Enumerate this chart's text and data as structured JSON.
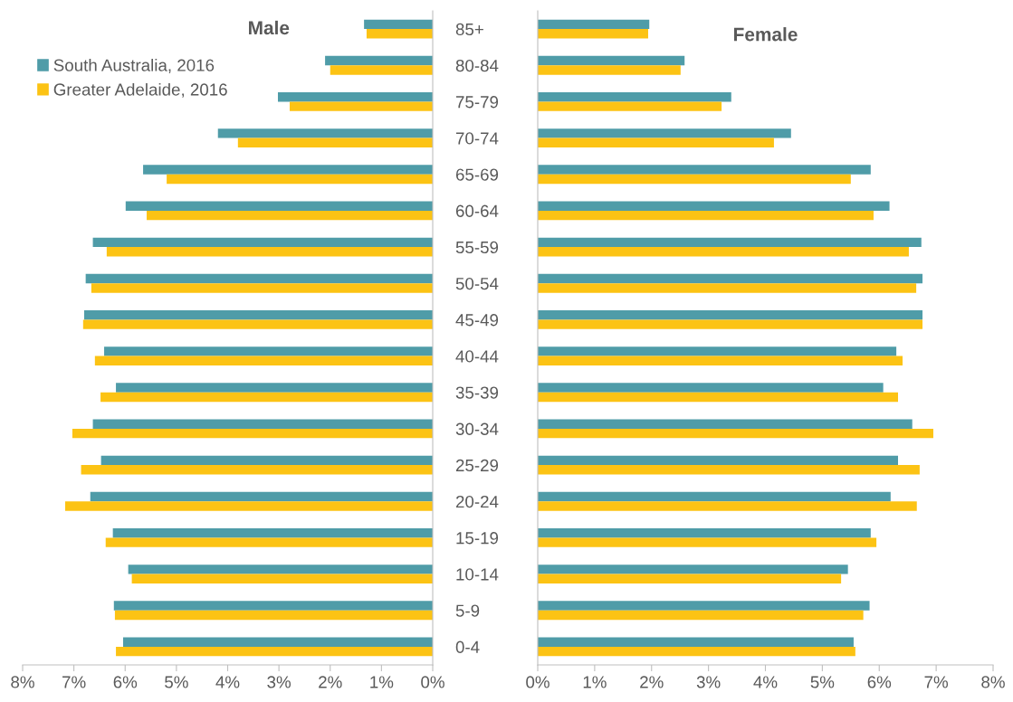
{
  "chart_data": [
    {
      "type": "bar",
      "orientation": "horizontal",
      "title": "Male",
      "categories": [
        "85+",
        "80-84",
        "75-79",
        "70-74",
        "65-69",
        "60-64",
        "55-59",
        "50-54",
        "45-49",
        "40-44",
        "35-39",
        "30-34",
        "25-29",
        "20-24",
        "15-19",
        "10-14",
        "5-9",
        "0-4"
      ],
      "series": [
        {
          "name": "South Australia, 2016",
          "color": "#4f9ca8",
          "values": [
            1.34,
            2.1,
            3.02,
            4.19,
            5.65,
            5.99,
            6.63,
            6.77,
            6.8,
            6.41,
            6.18,
            6.63,
            6.47,
            6.68,
            6.24,
            5.94,
            6.22,
            6.04
          ]
        },
        {
          "name": "Greater Adelaide, 2016",
          "color": "#fcc314",
          "values": [
            1.29,
            2.0,
            2.79,
            3.8,
            5.19,
            5.58,
            6.36,
            6.66,
            6.82,
            6.59,
            6.48,
            7.03,
            6.86,
            7.17,
            6.38,
            5.87,
            6.2,
            6.18
          ]
        }
      ],
      "xlim": [
        8,
        0
      ],
      "xticks": [
        {
          "value": 8,
          "label": "8%"
        },
        {
          "value": 7,
          "label": "7%"
        },
        {
          "value": 6,
          "label": "6%"
        },
        {
          "value": 5,
          "label": "5%"
        },
        {
          "value": 4,
          "label": "4%"
        },
        {
          "value": 3,
          "label": "3%"
        },
        {
          "value": 2,
          "label": "2%"
        },
        {
          "value": 1,
          "label": "1%"
        },
        {
          "value": 0,
          "label": "0%"
        }
      ],
      "legend": "top left",
      "grid": false
    },
    {
      "type": "bar",
      "orientation": "horizontal",
      "title": "Female",
      "categories": [
        null,
        null,
        null,
        null,
        null,
        null,
        null,
        null,
        null,
        null,
        null,
        null,
        null,
        null,
        null,
        null,
        null,
        null
      ],
      "series": [
        {
          "color": "#4f9ca8",
          "values": [
            1.96,
            2.58,
            3.4,
            4.45,
            5.85,
            6.18,
            6.74,
            6.76,
            6.76,
            6.3,
            6.07,
            6.58,
            6.33,
            6.2,
            5.85,
            5.45,
            5.83,
            5.55
          ]
        },
        {
          "color": "#fcc314",
          "values": [
            1.94,
            2.51,
            3.23,
            4.15,
            5.5,
            5.9,
            6.52,
            6.65,
            6.76,
            6.41,
            6.33,
            6.95,
            6.71,
            6.66,
            5.95,
            5.33,
            5.72,
            5.58
          ]
        }
      ],
      "xlim": [
        0,
        8
      ],
      "xticks": [
        {
          "value": 0,
          "label": "0%"
        },
        {
          "value": 1,
          "label": "1%"
        },
        {
          "value": 2,
          "label": "2%"
        },
        {
          "value": 3,
          "label": "3%"
        },
        {
          "value": 4,
          "label": "4%"
        },
        {
          "value": 5,
          "label": "5%"
        },
        {
          "value": 6,
          "label": "6%"
        },
        {
          "value": 7,
          "label": "7%"
        },
        {
          "value": 8,
          "label": "8%"
        }
      ],
      "tick_labels": "x",
      "grid": false
    }
  ]
}
